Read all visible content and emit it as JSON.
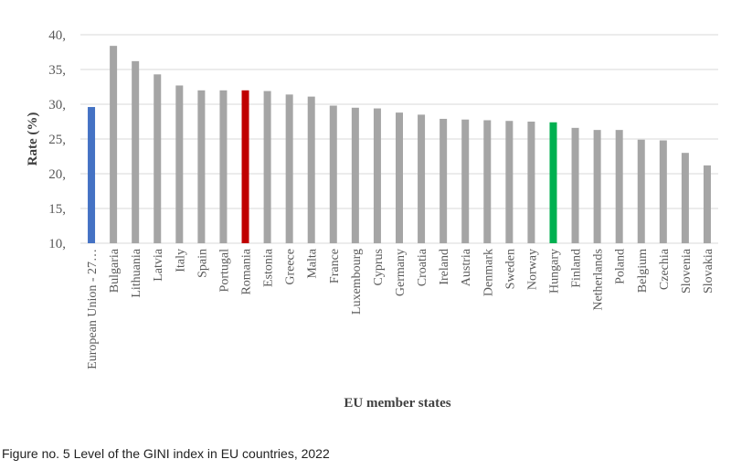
{
  "chart_data": {
    "type": "bar",
    "title": "",
    "xlabel": "EU member states",
    "ylabel": "Rate (%)",
    "ylim": [
      10,
      40
    ],
    "yticks": [
      "10,",
      "15,",
      "20,",
      "25,",
      "30,",
      "35,",
      "40,"
    ],
    "grid": true,
    "categories": [
      "European Union - 27…",
      "Bulgaria",
      "Lithuania",
      "Latvia",
      "Italy",
      "Spain",
      "Portugal",
      "Romania",
      "Estonia",
      "Greece",
      "Malta",
      "France",
      "Luxembourg",
      "Cyprus",
      "Germany",
      "Croatia",
      "Ireland",
      "Austria",
      "Denmark",
      "Sweden",
      "Norway",
      "Hungary",
      "Finland",
      "Netherlands",
      "Poland",
      "Belgium",
      "Czechia",
      "Slovenia",
      "Slovakia"
    ],
    "values": [
      29.6,
      38.4,
      36.2,
      34.3,
      32.7,
      32.0,
      32.0,
      32.0,
      31.9,
      31.4,
      31.1,
      29.8,
      29.5,
      29.4,
      28.8,
      28.5,
      27.9,
      27.8,
      27.7,
      27.6,
      27.5,
      27.4,
      26.6,
      26.3,
      26.3,
      24.9,
      24.8,
      23.0,
      21.2
    ],
    "highlights": {
      "European Union - 27…": "#4472C4",
      "Romania": "#C00000",
      "Hungary": "#00B050"
    },
    "default_color": "#A5A5A5"
  },
  "caption": "Figure no. 5 Level of the GINI index in EU countries, 2022"
}
